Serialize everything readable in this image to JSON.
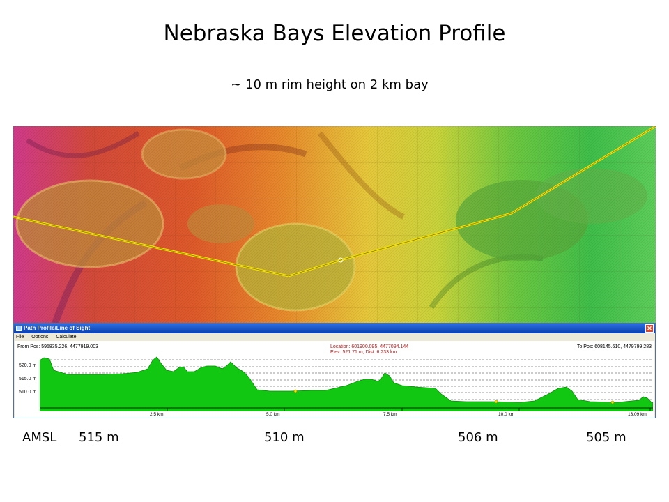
{
  "slide": {
    "title": "Nebraska Bays Elevation Profile",
    "subtitle": "~ 10 m rim height on 2 km bay"
  },
  "profile_window": {
    "title": "Path Profile/Line of Sight",
    "menu": [
      "File",
      "Options",
      "Calculate"
    ],
    "from_pos": "From Pos: 595835.226, 4477919.003",
    "to_pos": "To Pos: 608145.610, 4479799.283",
    "location": "Location: 601900.095, 4477094.144",
    "elev_dist": "Elev: 521.71 m, Dist: 6.233 km",
    "y_ticks": [
      "520.0 m",
      "515.0 m",
      "510.0 m"
    ],
    "x_ticks": [
      "2.5 km",
      "5.0 km",
      "7.5 km",
      "10.0 km",
      "13.09 km"
    ],
    "fill_color": "#12c712"
  },
  "elevation_labels": {
    "amsl": "AMSL",
    "values": [
      "515 m",
      "510 m",
      "506 m",
      "505 m"
    ]
  }
}
